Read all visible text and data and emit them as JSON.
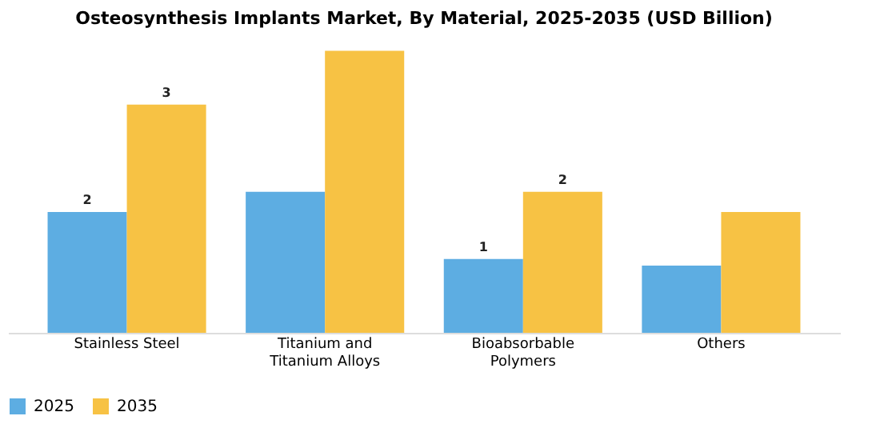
{
  "chart_data": {
    "type": "bar",
    "title": "Osteosynthesis Implants Market, By Material, 2025-2035 (USD Billion)",
    "categories": [
      "Stainless Steel",
      "Titanium and Titanium Alloys",
      "Bioabsorbable Polymers",
      "Others"
    ],
    "series": [
      {
        "name": "2025",
        "color": "#5dade2",
        "values": [
          1.8,
          2.1,
          1.1,
          1.0
        ],
        "value_labels": [
          "2",
          null,
          "1",
          null
        ]
      },
      {
        "name": "2035",
        "color": "#f7c244",
        "values": [
          3.4,
          4.2,
          2.1,
          1.8
        ],
        "value_labels": [
          "3",
          null,
          "2",
          null
        ]
      }
    ],
    "legend": "bottom",
    "grid": false,
    "tick_labels": "x"
  }
}
